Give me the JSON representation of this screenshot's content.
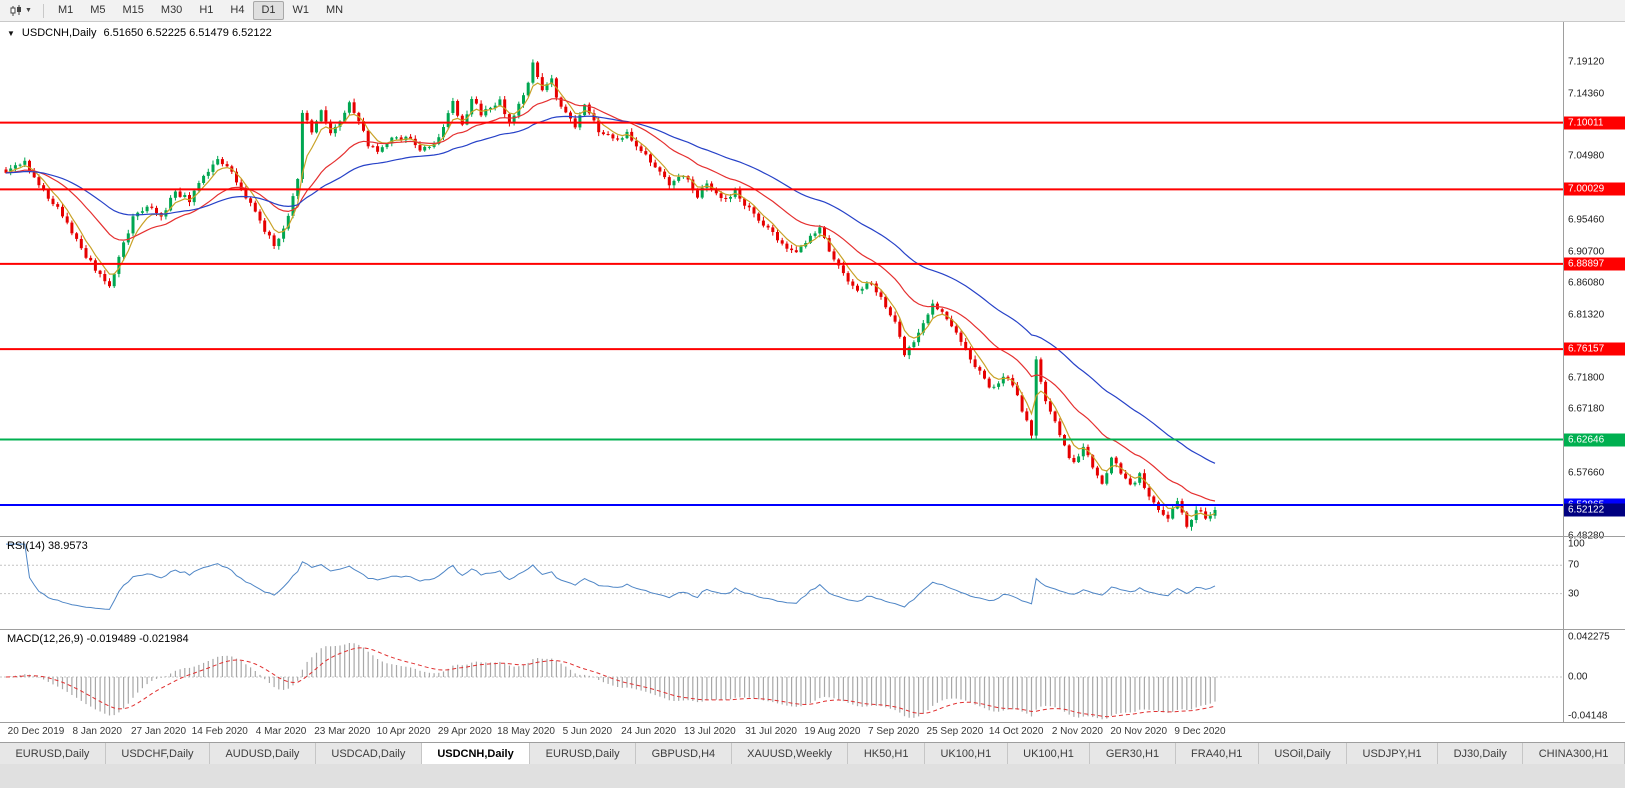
{
  "toolbar": {
    "timeframes": [
      {
        "label": "M1",
        "active": false
      },
      {
        "label": "M5",
        "active": false
      },
      {
        "label": "M15",
        "active": false
      },
      {
        "label": "M30",
        "active": false
      },
      {
        "label": "H1",
        "active": false
      },
      {
        "label": "H4",
        "active": false
      },
      {
        "label": "D1",
        "active": true
      },
      {
        "label": "W1",
        "active": false
      },
      {
        "label": "MN",
        "active": false
      }
    ]
  },
  "chart": {
    "symbol_label": "USDCNH,Daily",
    "ohlc_label": "6.51650 6.52225 6.51479 6.52122",
    "dropdown_icon": "▼"
  },
  "rsi": {
    "label": "RSI(14) 38.9573"
  },
  "macd": {
    "label": "MACD(12,26,9) -0.019489 -0.021984"
  },
  "tabs": {
    "items": [
      {
        "label": "EURUSD,Daily",
        "active": false
      },
      {
        "label": "USDCHF,Daily",
        "active": false
      },
      {
        "label": "AUDUSD,Daily",
        "active": false
      },
      {
        "label": "USDCAD,Daily",
        "active": false
      },
      {
        "label": "USDCNH,Daily",
        "active": true
      },
      {
        "label": "EURUSD,Daily",
        "active": false
      },
      {
        "label": "GBPUSD,H4",
        "active": false
      },
      {
        "label": "XAUUSD,Weekly",
        "active": false
      },
      {
        "label": "HK50,H1",
        "active": false
      },
      {
        "label": "UK100,H1",
        "active": false
      },
      {
        "label": "UK100,H1",
        "active": false
      },
      {
        "label": "GER30,H1",
        "active": false
      },
      {
        "label": "FRA40,H1",
        "active": false
      },
      {
        "label": "USOil,Daily",
        "active": false
      },
      {
        "label": "USDJPY,H1",
        "active": false
      },
      {
        "label": "DJ30,Daily",
        "active": false
      },
      {
        "label": "CHINA300,H1",
        "active": false
      }
    ]
  },
  "chart_data": {
    "type": "candlestick",
    "symbol": "USDCNH",
    "timeframe": "Daily",
    "ohlc_current": {
      "open": 6.5165,
      "high": 6.52225,
      "low": 6.51479,
      "close": 6.52122
    },
    "price_axis": {
      "ticks": [
        "7.19120",
        "7.14360",
        "7.09580",
        "7.04980",
        "7.00240",
        "6.95460",
        "6.90700",
        "6.86080",
        "6.81320",
        "6.76540",
        "6.71800",
        "6.67180",
        "6.62400",
        "6.57660",
        "6.52880",
        "6.48280"
      ],
      "ylim": [
        6.4823,
        7.2505
      ]
    },
    "levels": [
      {
        "value": 7.10011,
        "label": "7.10011",
        "color": "#ff0000",
        "width": 2
      },
      {
        "value": 7.00029,
        "label": "7.00029",
        "color": "#ff0000",
        "width": 2
      },
      {
        "value": 6.88897,
        "label": "6.88897",
        "color": "#ff0000",
        "width": 2
      },
      {
        "value": 6.76157,
        "label": "6.76157",
        "color": "#ff0000",
        "width": 2
      },
      {
        "value": 6.62646,
        "label": "6.62646",
        "color": "#00b050",
        "width": 2
      },
      {
        "value": 6.52865,
        "label": "6.52865",
        "color": "#0000ff",
        "width": 2
      }
    ],
    "current_price_badge": {
      "value": 6.52122,
      "label": "6.52122",
      "color": "#000080"
    },
    "candles": {
      "count": 258,
      "up_color": "#00a651",
      "down_color": "#e60000",
      "anchors": [
        [
          0,
          7.025
        ],
        [
          4,
          7.042
        ],
        [
          8,
          6.995
        ],
        [
          12,
          6.962
        ],
        [
          16,
          6.91
        ],
        [
          20,
          6.872
        ],
        [
          22,
          6.852
        ],
        [
          24,
          6.9
        ],
        [
          27,
          6.958
        ],
        [
          30,
          6.975
        ],
        [
          33,
          6.962
        ],
        [
          36,
          6.995
        ],
        [
          39,
          6.985
        ],
        [
          42,
          7.018
        ],
        [
          45,
          7.045
        ],
        [
          48,
          7.028
        ],
        [
          51,
          6.988
        ],
        [
          54,
          6.952
        ],
        [
          57,
          6.915
        ],
        [
          60,
          6.958
        ],
        [
          62,
          7.02
        ],
        [
          63,
          7.112
        ],
        [
          65,
          7.088
        ],
        [
          67,
          7.118
        ],
        [
          69,
          7.082
        ],
        [
          71,
          7.1
        ],
        [
          73,
          7.132
        ],
        [
          75,
          7.103
        ],
        [
          77,
          7.066
        ],
        [
          79,
          7.056
        ],
        [
          82,
          7.074
        ],
        [
          85,
          7.08
        ],
        [
          88,
          7.056
        ],
        [
          91,
          7.07
        ],
        [
          93,
          7.094
        ],
        [
          95,
          7.128
        ],
        [
          97,
          7.096
        ],
        [
          99,
          7.134
        ],
        [
          101,
          7.114
        ],
        [
          103,
          7.12
        ],
        [
          105,
          7.134
        ],
        [
          107,
          7.1
        ],
        [
          109,
          7.124
        ],
        [
          111,
          7.158
        ],
        [
          112,
          7.194
        ],
        [
          114,
          7.15
        ],
        [
          116,
          7.164
        ],
        [
          118,
          7.12
        ],
        [
          121,
          7.096
        ],
        [
          123,
          7.124
        ],
        [
          126,
          7.09
        ],
        [
          129,
          7.072
        ],
        [
          132,
          7.084
        ],
        [
          135,
          7.06
        ],
        [
          138,
          7.036
        ],
        [
          141,
          7.006
        ],
        [
          144,
          7.02
        ],
        [
          147,
          6.992
        ],
        [
          149,
          7.006
        ],
        [
          152,
          6.986
        ],
        [
          155,
          6.996
        ],
        [
          158,
          6.97
        ],
        [
          161,
          6.946
        ],
        [
          164,
          6.926
        ],
        [
          167,
          6.906
        ],
        [
          170,
          6.92
        ],
        [
          173,
          6.94
        ],
        [
          176,
          6.896
        ],
        [
          179,
          6.866
        ],
        [
          181,
          6.846
        ],
        [
          184,
          6.862
        ],
        [
          186,
          6.838
        ],
        [
          189,
          6.8
        ],
        [
          191,
          6.756
        ],
        [
          193,
          6.776
        ],
        [
          195,
          6.8
        ],
        [
          197,
          6.832
        ],
        [
          199,
          6.818
        ],
        [
          201,
          6.792
        ],
        [
          203,
          6.774
        ],
        [
          205,
          6.748
        ],
        [
          207,
          6.728
        ],
        [
          209,
          6.7
        ],
        [
          211,
          6.712
        ],
        [
          213,
          6.72
        ],
        [
          215,
          6.69
        ],
        [
          217,
          6.652
        ],
        [
          218,
          6.636
        ],
        [
          219,
          6.748
        ],
        [
          221,
          6.684
        ],
        [
          223,
          6.654
        ],
        [
          225,
          6.616
        ],
        [
          227,
          6.59
        ],
        [
          229,
          6.618
        ],
        [
          231,
          6.584
        ],
        [
          233,
          6.558
        ],
        [
          235,
          6.6
        ],
        [
          237,
          6.576
        ],
        [
          239,
          6.558
        ],
        [
          241,
          6.572
        ],
        [
          243,
          6.545
        ],
        [
          245,
          6.525
        ],
        [
          247,
          6.508
        ],
        [
          249,
          6.53
        ],
        [
          251,
          6.498
        ],
        [
          253,
          6.522
        ],
        [
          255,
          6.512
        ],
        [
          257,
          6.5212
        ]
      ]
    },
    "moving_averages": [
      {
        "period": 5,
        "color": "#c9a227"
      },
      {
        "period": 20,
        "color": "#e53030"
      },
      {
        "period": 45,
        "color": "#2742c8"
      }
    ],
    "rsi": {
      "period": 14,
      "current": 38.9573,
      "color": "#4f86c6",
      "levels": [
        70,
        30
      ],
      "ticks": [
        {
          "value": 100,
          "label": "100"
        },
        {
          "value": 70,
          "label": "70"
        },
        {
          "value": 30,
          "label": "30"
        }
      ],
      "ylim": [
        -20,
        110
      ]
    },
    "macd": {
      "fast": 12,
      "slow": 26,
      "signal": 9,
      "current": -0.019489,
      "signal_current": -0.021984,
      "hist_color": "#a8a8a8",
      "signal_color": "#e03030",
      "ticks": [
        {
          "value": 0.042275,
          "label": "0.042275"
        },
        {
          "value": 0,
          "label": "0.00"
        },
        {
          "value": -0.04148,
          "label": "-0.04148"
        }
      ],
      "ylim": [
        -0.0476,
        0.0497
      ]
    },
    "x_labels": [
      "20 Dec 2019",
      "8 Jan 2020",
      "27 Jan 2020",
      "14 Feb 2020",
      "4 Mar 2020",
      "23 Mar 2020",
      "10 Apr 2020",
      "29 Apr 2020",
      "18 May 2020",
      "5 Jun 2020",
      "24 Jun 2020",
      "13 Jul 2020",
      "31 Jul 2020",
      "19 Aug 2020",
      "7 Sep 2020",
      "25 Sep 2020",
      "14 Oct 2020",
      "2 Nov 2020",
      "20 Nov 2020",
      "9 Dec 2020"
    ]
  }
}
